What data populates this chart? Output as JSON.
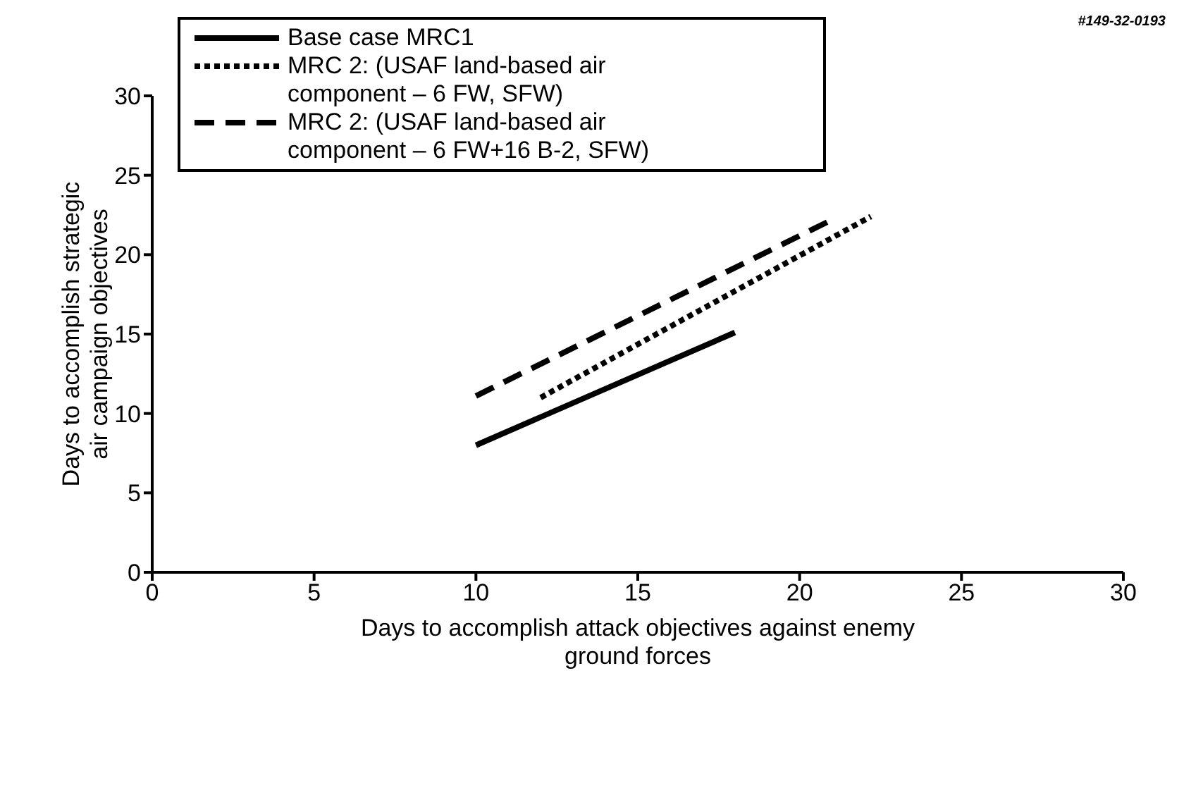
{
  "chart_data": {
    "type": "line",
    "xlabel": "Days to accomplish attack objectives against enemy ground forces",
    "ylabel": "Days to accomplish strategic air campaign objectives",
    "annotations": [
      "#149-32-0193"
    ],
    "xlim": [
      0,
      30
    ],
    "xticks": [
      0,
      5,
      10,
      15,
      20,
      25,
      30
    ],
    "ylim": [
      0,
      30
    ],
    "yticks": [
      0,
      5,
      10,
      15,
      20,
      25,
      30
    ],
    "grid": false,
    "legend": "top left",
    "marker": "none",
    "series": [
      {
        "name": "Base case MRC1",
        "color": "#000000",
        "line_style": "solid",
        "x": [
          10,
          18
        ],
        "values": [
          8,
          15.1
        ]
      },
      {
        "name": "MRC 2:  (USAF land-based air component – 6 FW, SFW)",
        "color": "#000000",
        "line_style": "dotted",
        "x": [
          12,
          22.2
        ],
        "values": [
          11,
          22.4
        ]
      },
      {
        "name": "MRC 2:  (USAF land-based air component – 6 FW+16 B-2, SFW)",
        "color": "#000000",
        "line_style": "dashed",
        "x": [
          10,
          21
        ],
        "values": [
          11.1,
          22.2
        ]
      }
    ]
  }
}
